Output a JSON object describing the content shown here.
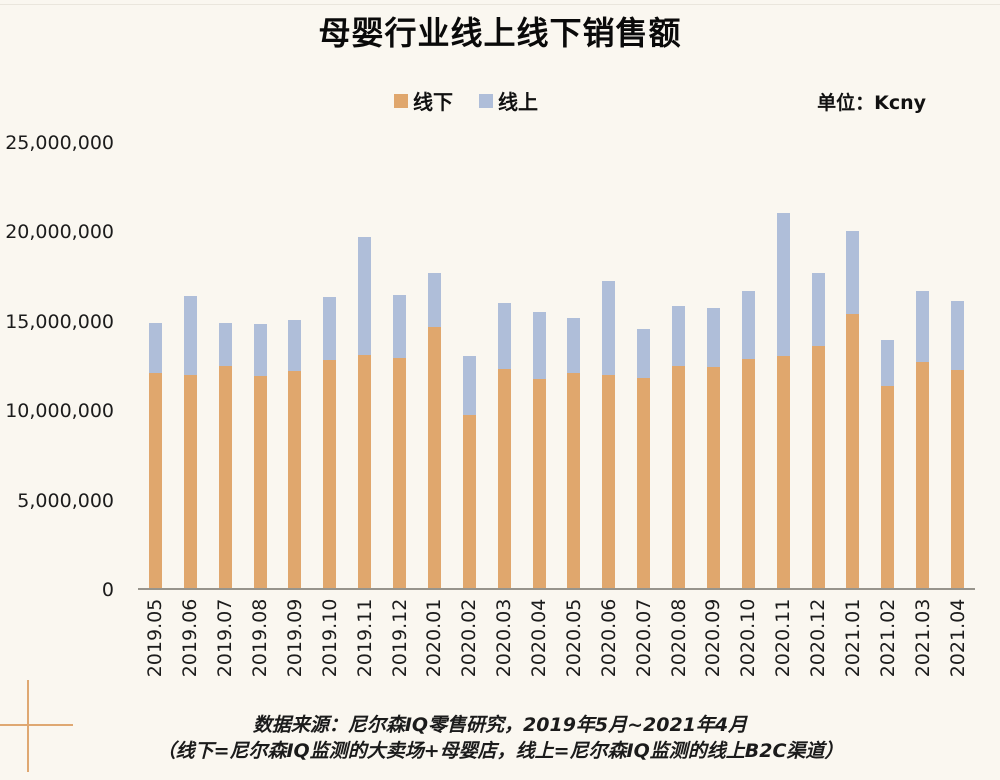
{
  "page": {
    "title": "母婴行业线上线下销售额",
    "unit_label": "单位：Kcny",
    "footer_line1": "数据来源：尼尔森IQ零售研究，2019年5月~2021年4月",
    "footer_line2": "（线下=尼尔森IQ监测的大卖场+母婴店，线上=尼尔森IQ监测的线上B2C渠道）"
  },
  "legend": [
    {
      "label": "线下",
      "color": "#E0A76D"
    },
    {
      "label": "线上",
      "color": "#AFBED9"
    }
  ],
  "colors": {
    "background": "#FAF7F0",
    "offline": "#E0A76D",
    "online": "#AFBED9",
    "axis": "#97948C",
    "decor_cross": "#DFA872"
  },
  "chart_data": {
    "type": "bar",
    "stacked": true,
    "title": "母婴行业线上线下销售额",
    "unit": "Kcny",
    "xlabel": "",
    "ylabel": "",
    "ylim": [
      0,
      25000000
    ],
    "ytick_step": 5000000,
    "ytick_labels": [
      "0",
      "5,000,000",
      "10,000,000",
      "15,000,000",
      "20,000,000",
      "25,000,000"
    ],
    "grid": false,
    "legend_position": "top-center",
    "categories": [
      "2019.05",
      "2019.06",
      "2019.07",
      "2019.08",
      "2019.09",
      "2019.10",
      "2019.11",
      "2019.12",
      "2020.01",
      "2020.02",
      "2020.03",
      "2020.04",
      "2020.05",
      "2020.06",
      "2020.07",
      "2020.08",
      "2020.09",
      "2020.10",
      "2020.11",
      "2020.12",
      "2021.01",
      "2021.02",
      "2021.03",
      "2021.04"
    ],
    "series": [
      {
        "name": "线下",
        "color": "#E0A76D",
        "values": [
          12000000,
          11900000,
          12400000,
          11850000,
          12150000,
          12750000,
          13050000,
          12850000,
          14600000,
          9700000,
          12250000,
          11700000,
          12050000,
          11900000,
          11750000,
          12400000,
          12350000,
          12800000,
          13000000,
          13550000,
          15300000,
          11300000,
          12650000,
          12200000
        ]
      },
      {
        "name": "线上",
        "color": "#AFBED9",
        "values": [
          2800000,
          4450000,
          2400000,
          2900000,
          2850000,
          3500000,
          6600000,
          3550000,
          3000000,
          3250000,
          3700000,
          3750000,
          3050000,
          5250000,
          2750000,
          3400000,
          3300000,
          3800000,
          7950000,
          4050000,
          4650000,
          2550000,
          3950000,
          3850000
        ]
      }
    ]
  }
}
